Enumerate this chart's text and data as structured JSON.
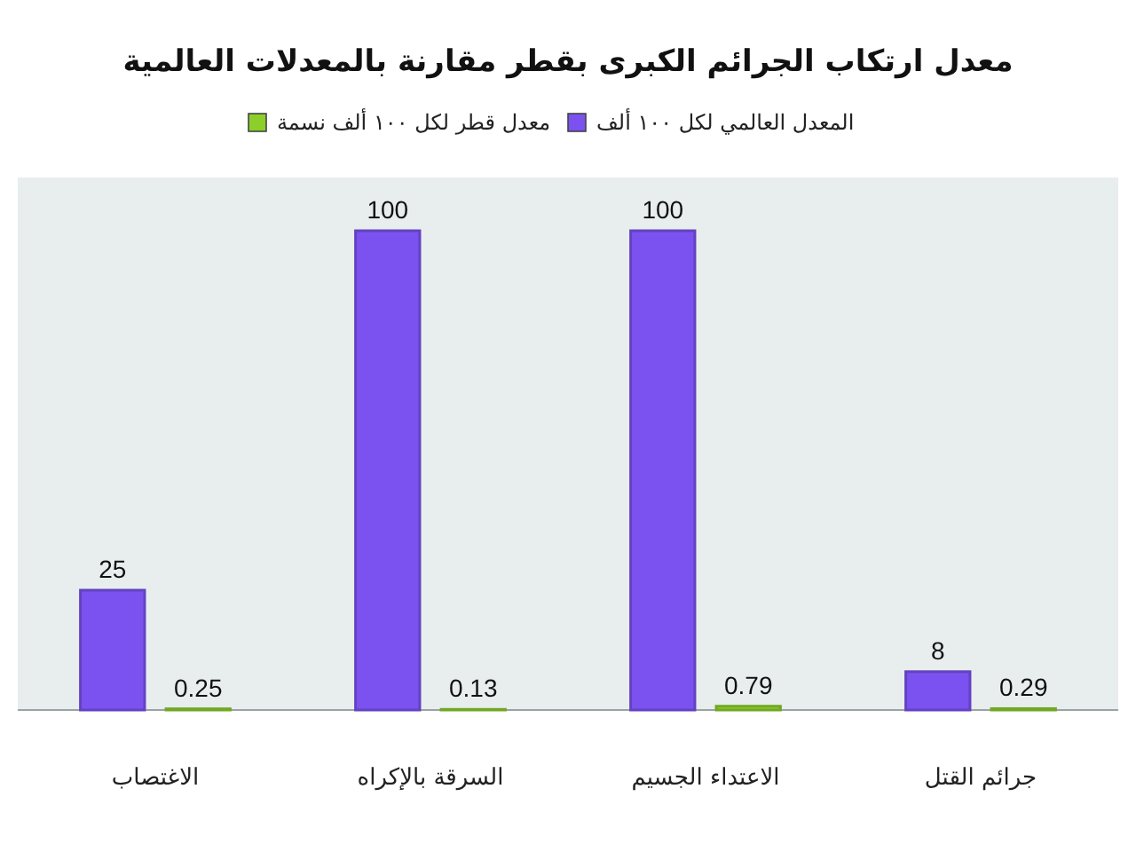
{
  "chart_data": {
    "type": "bar",
    "title": "معدل ارتكاب الجرائم الكبرى بقطر مقارنة بالمعدلات العالمية",
    "categories": [
      "الاغتصاب",
      "السرقة بالإكراه",
      "الاعتداء الجسيم",
      "جرائم القتل"
    ],
    "series": [
      {
        "name": "المعدل العالمي لكل ١٠٠ ألف",
        "color": "#7b52f0",
        "values": [
          25,
          100,
          100,
          8
        ]
      },
      {
        "name": "معدل قطر لكل ١٠٠ ألف نسمة",
        "color": "#8ccf2a",
        "values": [
          0.25,
          0.13,
          0.79,
          0.29
        ]
      }
    ],
    "data_labels": true,
    "legend": "top"
  }
}
